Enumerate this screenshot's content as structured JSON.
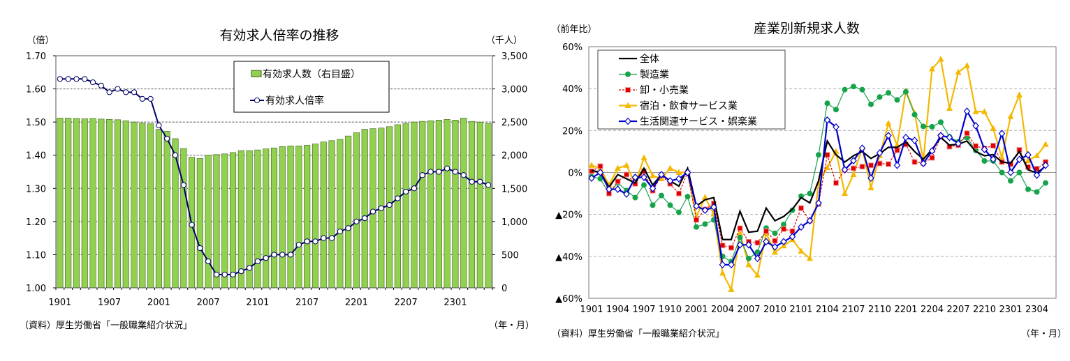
{
  "chart_data": [
    {
      "type": "bar+line",
      "title": "有効求人倍率の推移",
      "ylabel_left": "（倍）",
      "ylabel_right": "（千人）",
      "xlabel": "（年・月）",
      "source": "（資料）厚生労働省「一般職業紹介状況」",
      "ylim_left": [
        1.0,
        1.7
      ],
      "ylim_right": [
        0,
        3500
      ],
      "yticks_left": [
        "1.00",
        "1.10",
        "1.20",
        "1.30",
        "1.40",
        "1.50",
        "1.60",
        "1.70"
      ],
      "yticks_right": [
        "0",
        "500",
        "1,000",
        "1,500",
        "2,000",
        "2,500",
        "3,000",
        "3,500"
      ],
      "xticks": [
        "1901",
        "1907",
        "2001",
        "2007",
        "2101",
        "2107",
        "2201",
        "2207",
        "2301"
      ],
      "x_start": "1901",
      "x_step": "monthly",
      "grid": true,
      "legend_position": "top-right",
      "colors": {
        "bars": "#92d050",
        "line": "#000066"
      },
      "series": [
        {
          "name": "有効求人数（右目盛）",
          "axis": "right",
          "kind": "bar",
          "values": [
            2560,
            2560,
            2555,
            2550,
            2555,
            2545,
            2540,
            2535,
            2520,
            2500,
            2485,
            2475,
            2390,
            2360,
            2250,
            2100,
            1970,
            1950,
            2000,
            2010,
            2020,
            2040,
            2070,
            2070,
            2080,
            2095,
            2110,
            2130,
            2140,
            2140,
            2150,
            2170,
            2200,
            2220,
            2240,
            2290,
            2340,
            2390,
            2400,
            2410,
            2430,
            2460,
            2480,
            2500,
            2510,
            2520,
            2530,
            2540,
            2530,
            2560,
            2510,
            2500,
            2480
          ]
        },
        {
          "name": "有効求人倍率",
          "axis": "left",
          "kind": "line",
          "values": [
            1.63,
            1.63,
            1.63,
            1.63,
            1.62,
            1.61,
            1.59,
            1.6,
            1.59,
            1.59,
            1.57,
            1.57,
            1.49,
            1.45,
            1.4,
            1.31,
            1.19,
            1.12,
            1.08,
            1.04,
            1.04,
            1.04,
            1.05,
            1.06,
            1.08,
            1.09,
            1.1,
            1.1,
            1.1,
            1.13,
            1.14,
            1.14,
            1.15,
            1.15,
            1.17,
            1.18,
            1.2,
            1.21,
            1.23,
            1.24,
            1.25,
            1.27,
            1.29,
            1.3,
            1.34,
            1.35,
            1.35,
            1.36,
            1.35,
            1.34,
            1.32,
            1.32,
            1.31
          ]
        }
      ]
    },
    {
      "type": "line",
      "title": "産業別新規求人数",
      "ylabel": "（前年比）",
      "xlabel": "（年・月）",
      "source": "（資料）厚生労働省「一般職業紹介状況」",
      "ylim": [
        -60,
        60
      ],
      "yticks": [
        "60%",
        "40%",
        "20%",
        "0%",
        "▲20%",
        "▲40%",
        "▲60%"
      ],
      "xticks": [
        "1901",
        "1904",
        "1907",
        "1910",
        "2001",
        "2004",
        "2007",
        "2010",
        "2101",
        "2104",
        "2107",
        "2110",
        "2201",
        "2204",
        "2207",
        "2210",
        "2301",
        "2304"
      ],
      "x_start": "1901",
      "x_step": "monthly",
      "grid": true,
      "legend_position": "top-left",
      "series": [
        {
          "name": "全体",
          "color": "#000000",
          "marker": "none",
          "dash": false,
          "values": [
            1,
            0,
            -7,
            -1,
            -3,
            -5,
            2,
            -6,
            -1,
            -4,
            -6.5,
            2,
            -16,
            -13,
            -12,
            -32,
            -32,
            -18.5,
            -28.5,
            -28,
            -17,
            -23,
            -21,
            -17.5,
            -12,
            -14.5,
            -4,
            15,
            8.4,
            5,
            8,
            10,
            6.7,
            9,
            12,
            12,
            14.6,
            10,
            6.3,
            11,
            16.7,
            13,
            13.5,
            15,
            10,
            8,
            8.5,
            5,
            4.5,
            10,
            1.3,
            -0.3,
            3
          ]
        },
        {
          "name": "製造業",
          "color": "#17a34a",
          "marker": "circle",
          "dash": false,
          "values": [
            -2,
            -3,
            -10,
            -5,
            -8.6,
            -12,
            -6,
            -15.6,
            -11,
            -15.6,
            -19,
            -11.5,
            -26,
            -24.6,
            -22.6,
            -40,
            -42.5,
            -31,
            -41,
            -38,
            -26.5,
            -29,
            -24.8,
            -18,
            -11.3,
            -10,
            8.4,
            33,
            30,
            39.5,
            41,
            39.5,
            32.5,
            36,
            38,
            34.6,
            38.5,
            27.6,
            22,
            21.8,
            24,
            17,
            14.6,
            16.7,
            10.6,
            5.5,
            5.5,
            0,
            -4,
            0,
            -8,
            -9.3,
            -5
          ]
        },
        {
          "name": "卸・小売業",
          "color": "#e00000",
          "marker": "square",
          "dash": true,
          "values": [
            0.6,
            3,
            -10,
            -4.3,
            -1,
            -5.4,
            0.6,
            -8.7,
            -1.5,
            -5.4,
            -10,
            0,
            -22.6,
            -17.6,
            -14.8,
            -34.8,
            -35.9,
            -26.6,
            -33,
            -33.5,
            -28,
            -32.6,
            -27,
            -28,
            -17,
            -23,
            -15,
            8.4,
            -5,
            1.2,
            2,
            2.8,
            3.4,
            4.3,
            4,
            10.6,
            13.4,
            5,
            4.5,
            7,
            17.3,
            12.3,
            13,
            18.7,
            12.6,
            11.5,
            12.8,
            5,
            4,
            10.8,
            2.6,
            1.8,
            5
          ]
        },
        {
          "name": "宿泊・飲食サービス業",
          "color": "#f5b800",
          "marker": "triangle",
          "dash": false,
          "values": [
            3.4,
            2,
            -6,
            2,
            3.4,
            -5.4,
            7,
            -1.5,
            -3,
            2,
            0,
            0,
            -21,
            -11.9,
            -19.8,
            -48,
            -55.8,
            -29,
            -44,
            -49,
            -29,
            -38,
            -35,
            -32,
            -37.5,
            -41,
            -5,
            2.3,
            10,
            -10,
            -1,
            11.7,
            -7.3,
            8,
            23.4,
            13,
            38.9,
            28.3,
            5.6,
            49.4,
            54,
            30.6,
            47.8,
            51,
            29,
            29,
            21,
            7,
            26.7,
            37,
            5.6,
            8,
            13.4
          ]
        },
        {
          "name": "生活関連サービス・娯楽業",
          "color": "#0000cc",
          "marker": "diamond",
          "dash": false,
          "values": [
            -2.7,
            0,
            -8,
            -8,
            -10.3,
            -2.3,
            -2.3,
            -7.6,
            -1,
            -4,
            -3,
            0,
            -16,
            -18,
            -16.5,
            -44,
            -44,
            -34.5,
            -34.5,
            -41,
            -33,
            -35.5,
            -33,
            -30.6,
            -26,
            -23,
            -14.6,
            25,
            21.7,
            1.3,
            5.6,
            11.6,
            -2.7,
            9.3,
            17.6,
            3.4,
            16.7,
            15.3,
            4.3,
            10.3,
            17.6,
            16.7,
            13.8,
            29.2,
            22.3,
            11,
            6.3,
            18.6,
            0,
            6.2,
            8.4,
            -1.3,
            3.4
          ]
        }
      ]
    }
  ]
}
